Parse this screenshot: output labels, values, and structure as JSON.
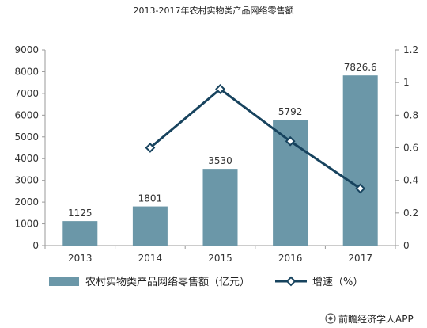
{
  "chart_data": {
    "type": "bar",
    "title": "2013-2017年农村实物类产品网络零售额",
    "categories": [
      "2013",
      "2014",
      "2015",
      "2016",
      "2017"
    ],
    "series": [
      {
        "name": "农村实物类产品网络零售额（亿元）",
        "type": "bar",
        "axis": "left",
        "values": [
          1125,
          1801,
          3530,
          5792,
          7826.6
        ],
        "labels": [
          "1125",
          "1801",
          "3530",
          "5792",
          "7826.6"
        ]
      },
      {
        "name": "增速（%）",
        "type": "line",
        "axis": "right",
        "marker": "diamond",
        "values": [
          null,
          0.6,
          0.96,
          0.64,
          0.35
        ]
      }
    ],
    "yleft": {
      "ylim": [
        0,
        9000
      ],
      "ticks": [
        "0",
        "1000",
        "2000",
        "3000",
        "4000",
        "5000",
        "6000",
        "7000",
        "8000",
        "9000"
      ]
    },
    "yright": {
      "ylim": [
        0,
        1.2
      ],
      "ticks": [
        "0",
        "0.2",
        "0.4",
        "0.6",
        "0.8",
        "1",
        "1.2"
      ]
    },
    "legend_position": "bottom",
    "colors": {
      "bar": "#6b97a8",
      "line": "#17435e",
      "marker_fill": "#ffffff",
      "axis": "#9a9a9a",
      "text": "#333333"
    }
  },
  "source": "前瞻经济学人APP"
}
